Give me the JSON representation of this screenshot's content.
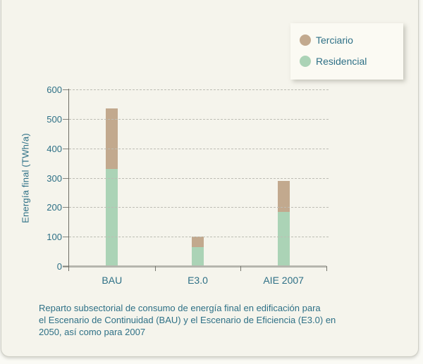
{
  "colors": {
    "terciario": "#c2a98e",
    "residencial": "#abd3b6",
    "teal_text": "#2e7086",
    "card_bg": "#f5f4ec",
    "legend_bg": "#fbfaf3",
    "grid": "#bdbdb4",
    "y_axis": "#6d6d65",
    "x_axis": "#b5b5ad"
  },
  "legend": {
    "items": [
      {
        "label": "Terciario",
        "color": "#c2a98e"
      },
      {
        "label": "Residencial",
        "color": "#abd3b6"
      }
    ]
  },
  "chart_data": {
    "type": "bar",
    "stacked": true,
    "categories": [
      "BAU",
      "E3.0",
      "AIE 2007"
    ],
    "series": [
      {
        "name": "Residencial",
        "color": "#abd3b6",
        "values": [
          330,
          65,
          185
        ]
      },
      {
        "name": "Terciario",
        "color": "#c2a98e",
        "values": [
          205,
          35,
          105
        ]
      }
    ],
    "totals": [
      535,
      100,
      290
    ],
    "title": "",
    "xlabel": "",
    "ylabel": "Energía final (TWh/a)",
    "ylim": [
      0,
      600
    ],
    "y_ticks": [
      0,
      100,
      200,
      300,
      400,
      500,
      600
    ],
    "grid": "horizontal-dashed",
    "legend_position": "top-right",
    "caption_lines": [
      "Reparto subsectorial de consumo de energía final en edificación para",
      "el Escenario de Continuidad (BAU) y el Escenario de Eficiencia (E3.0) en",
      "2050, así como para 2007"
    ]
  }
}
